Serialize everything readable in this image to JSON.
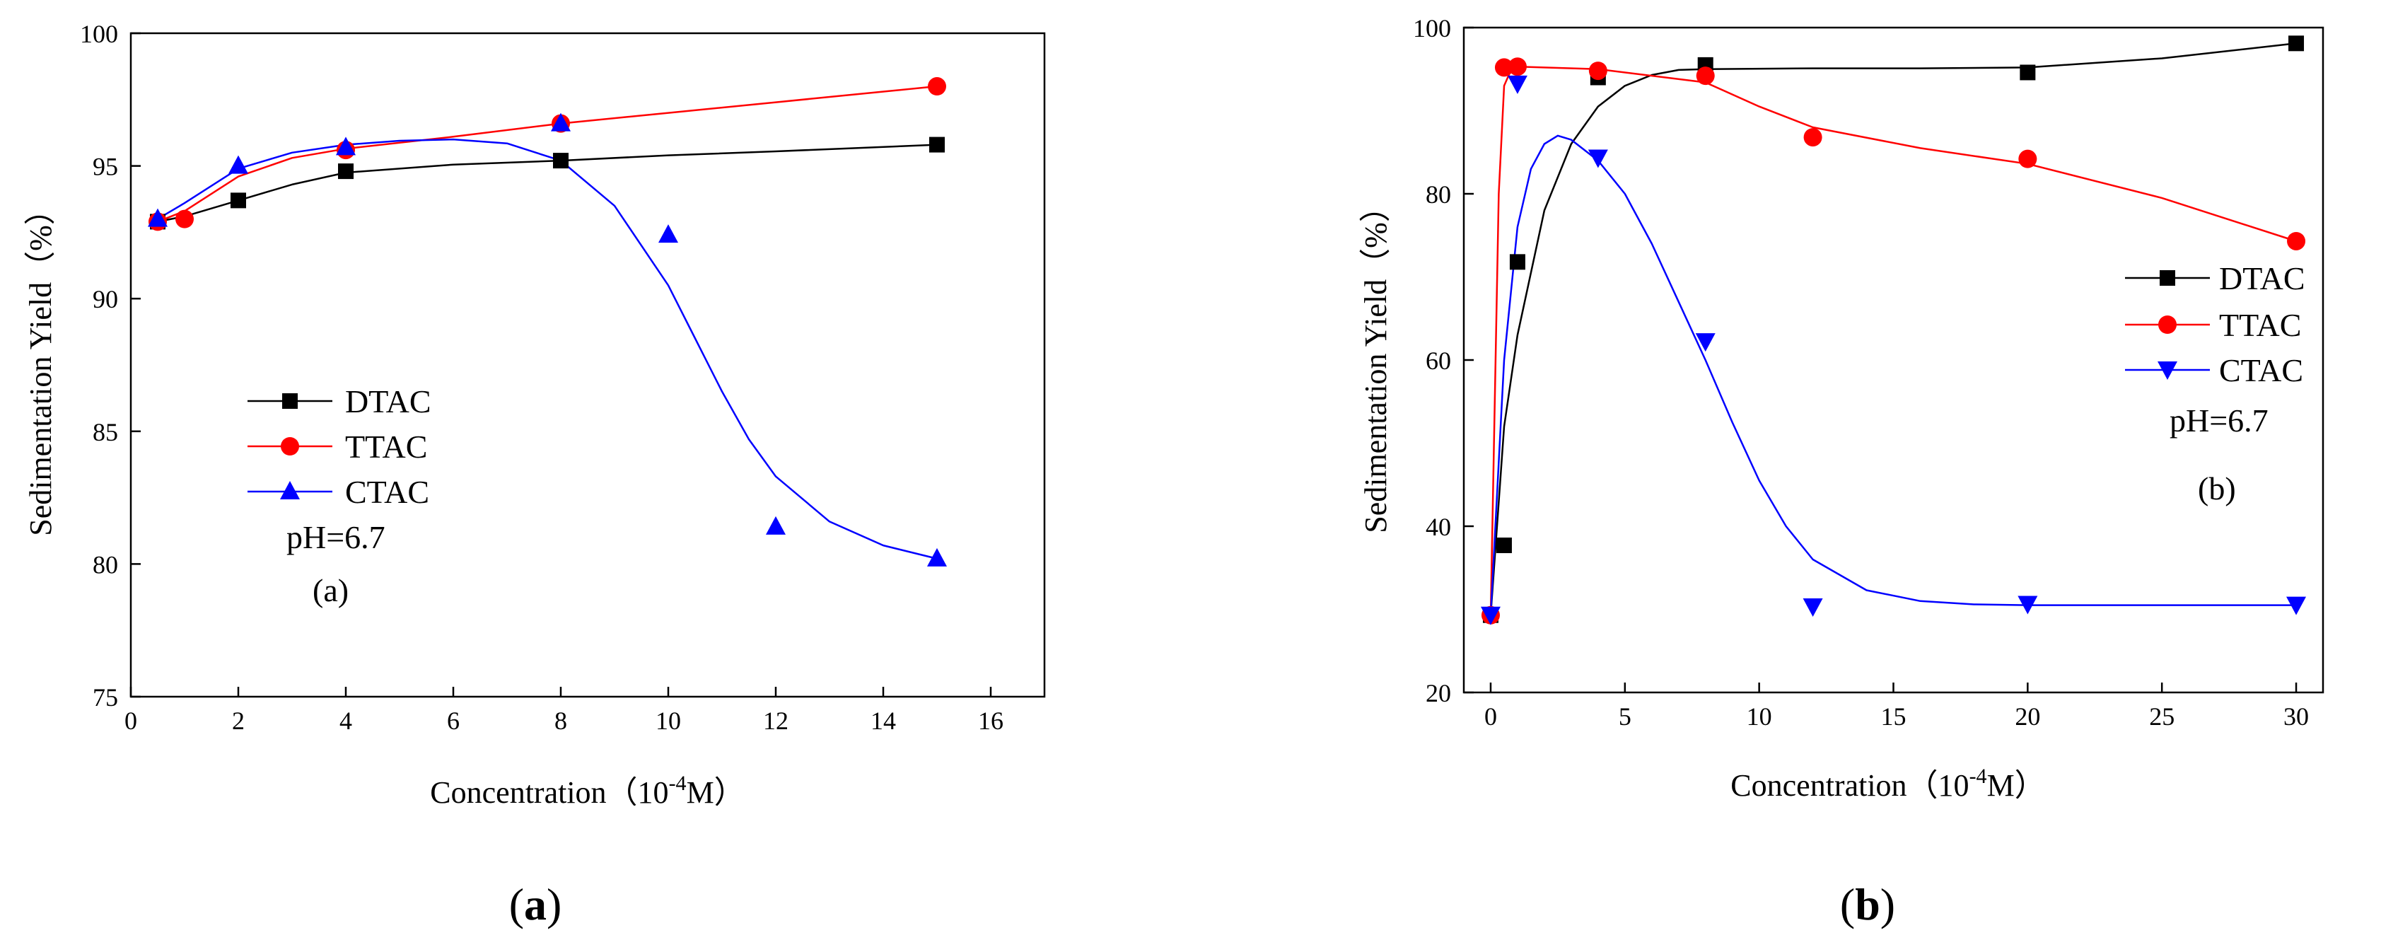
{
  "chart_data": [
    {
      "id": "a",
      "type": "scatter",
      "panel_label": "a",
      "annotation_label": "(a)",
      "ph_label": "pH=6.7",
      "xlabel": "Concentration（10",
      "xlabel_exp": "-4",
      "xlabel_tail": "M）",
      "ylabel": "Sedimentation Yield（%）",
      "xlim": [
        0,
        17
      ],
      "ylim": [
        75,
        100
      ],
      "xticks": [
        0,
        2,
        4,
        6,
        8,
        10,
        12,
        14,
        16
      ],
      "yticks": [
        75,
        80,
        85,
        90,
        95,
        100
      ],
      "xtick_labels": [
        "0",
        "2",
        "4",
        "6",
        "8",
        "10",
        "12",
        "14",
        "16"
      ],
      "ytick_labels": [
        "75",
        "80",
        "85",
        "90",
        "95",
        "100"
      ],
      "legend_position": "center-left",
      "series": [
        {
          "name": "DTAC",
          "color": "#000000",
          "marker": "square",
          "x": [
            0.5,
            2,
            4,
            8,
            15
          ],
          "y": [
            92.9,
            93.7,
            94.8,
            95.2,
            95.8
          ],
          "curve": [
            [
              0.5,
              92.9
            ],
            [
              1,
              93.1
            ],
            [
              2,
              93.7
            ],
            [
              3,
              94.3
            ],
            [
              4,
              94.75
            ],
            [
              6,
              95.05
            ],
            [
              8,
              95.2
            ],
            [
              10,
              95.4
            ],
            [
              12,
              95.55
            ],
            [
              15,
              95.8
            ]
          ]
        },
        {
          "name": "TTAC",
          "color": "#ff0000",
          "marker": "circle",
          "x": [
            0.5,
            1,
            4,
            8,
            15
          ],
          "y": [
            92.9,
            93.0,
            95.6,
            96.6,
            98.0
          ],
          "curve": [
            [
              0.5,
              92.9
            ],
            [
              1,
              93.3
            ],
            [
              2,
              94.6
            ],
            [
              3,
              95.3
            ],
            [
              4,
              95.65
            ],
            [
              6,
              96.1
            ],
            [
              8,
              96.6
            ],
            [
              10,
              97.0
            ],
            [
              12,
              97.4
            ],
            [
              15,
              98.0
            ]
          ]
        },
        {
          "name": "CTAC",
          "color": "#0000ff",
          "marker": "triangle-up",
          "x": [
            0.5,
            2,
            4,
            8,
            10,
            12,
            15
          ],
          "y": [
            93.0,
            95.0,
            95.7,
            96.6,
            92.4,
            81.4,
            80.2
          ],
          "curve": [
            [
              0.5,
              93.0
            ],
            [
              1,
              93.6
            ],
            [
              2,
              94.9
            ],
            [
              3,
              95.5
            ],
            [
              4,
              95.8
            ],
            [
              5,
              95.95
            ],
            [
              6,
              96.0
            ],
            [
              7,
              95.85
            ],
            [
              8,
              95.2
            ],
            [
              9,
              93.5
            ],
            [
              10,
              90.5
            ],
            [
              10.5,
              88.5
            ],
            [
              11,
              86.5
            ],
            [
              11.5,
              84.7
            ],
            [
              12,
              83.3
            ],
            [
              13,
              81.6
            ],
            [
              14,
              80.7
            ],
            [
              15,
              80.2
            ]
          ]
        }
      ]
    },
    {
      "id": "b",
      "type": "scatter",
      "panel_label": "b",
      "annotation_label": "(b)",
      "ph_label": "pH=6.7",
      "xlabel": "Concentration（10",
      "xlabel_exp": "-4",
      "xlabel_tail": "M）",
      "ylabel": "Sedimentation Yield（%）",
      "xlim": [
        -1,
        31
      ],
      "ylim": [
        20,
        100
      ],
      "xticks": [
        0,
        5,
        10,
        15,
        20,
        25,
        30
      ],
      "yticks": [
        20,
        40,
        60,
        80,
        100
      ],
      "xtick_labels": [
        "0",
        "5",
        "10",
        "15",
        "20",
        "25",
        "30"
      ],
      "ytick_labels": [
        "20",
        "40",
        "60",
        "80",
        "100"
      ],
      "legend_position": "top-right",
      "series": [
        {
          "name": "DTAC",
          "color": "#000000",
          "marker": "square",
          "x": [
            0,
            0.5,
            1,
            4,
            8,
            20,
            30
          ],
          "y": [
            29.3,
            37.7,
            71.8,
            94.0,
            95.5,
            94.6,
            98.1
          ],
          "curve": [
            [
              0,
              29.3
            ],
            [
              0.5,
              52
            ],
            [
              1,
              63
            ],
            [
              2,
              78
            ],
            [
              3,
              86
            ],
            [
              4,
              90.5
            ],
            [
              5,
              93
            ],
            [
              6,
              94.3
            ],
            [
              7,
              94.9
            ],
            [
              8,
              95.0
            ],
            [
              12,
              95.1
            ],
            [
              16,
              95.1
            ],
            [
              20,
              95.2
            ],
            [
              25,
              96.3
            ],
            [
              30,
              98.1
            ]
          ]
        },
        {
          "name": "TTAC",
          "color": "#ff0000",
          "marker": "circle",
          "x": [
            0,
            0.5,
            1,
            4,
            8,
            12,
            20,
            30
          ],
          "y": [
            29.3,
            95.2,
            95.3,
            94.8,
            94.2,
            86.8,
            84.2,
            74.3
          ],
          "curve": [
            [
              0,
              29.3
            ],
            [
              0.3,
              80
            ],
            [
              0.5,
              93
            ],
            [
              0.8,
              95.2
            ],
            [
              1,
              95.3
            ],
            [
              4,
              95.0
            ],
            [
              8,
              93.4
            ],
            [
              10,
              90.5
            ],
            [
              12,
              88.0
            ],
            [
              16,
              85.5
            ],
            [
              20,
              83.6
            ],
            [
              25,
              79.5
            ],
            [
              30,
              74.3
            ]
          ]
        },
        {
          "name": "CTAC",
          "color": "#0000ff",
          "marker": "triangle-down",
          "x": [
            0,
            1,
            4,
            8,
            12,
            20,
            30
          ],
          "y": [
            29.3,
            93.2,
            84.3,
            62.2,
            30.3,
            30.6,
            30.5
          ],
          "curve": [
            [
              0,
              29.3
            ],
            [
              0.5,
              60
            ],
            [
              1,
              76
            ],
            [
              1.5,
              83
            ],
            [
              2,
              86
            ],
            [
              2.5,
              87
            ],
            [
              3,
              86.5
            ],
            [
              4,
              84
            ],
            [
              5,
              80
            ],
            [
              6,
              74
            ],
            [
              7,
              67
            ],
            [
              8,
              60
            ],
            [
              9,
              52.5
            ],
            [
              10,
              45.5
            ],
            [
              11,
              40
            ],
            [
              12,
              36
            ],
            [
              14,
              32.3
            ],
            [
              16,
              31.0
            ],
            [
              18,
              30.6
            ],
            [
              20,
              30.5
            ],
            [
              25,
              30.5
            ],
            [
              30,
              30.5
            ]
          ]
        }
      ]
    }
  ]
}
